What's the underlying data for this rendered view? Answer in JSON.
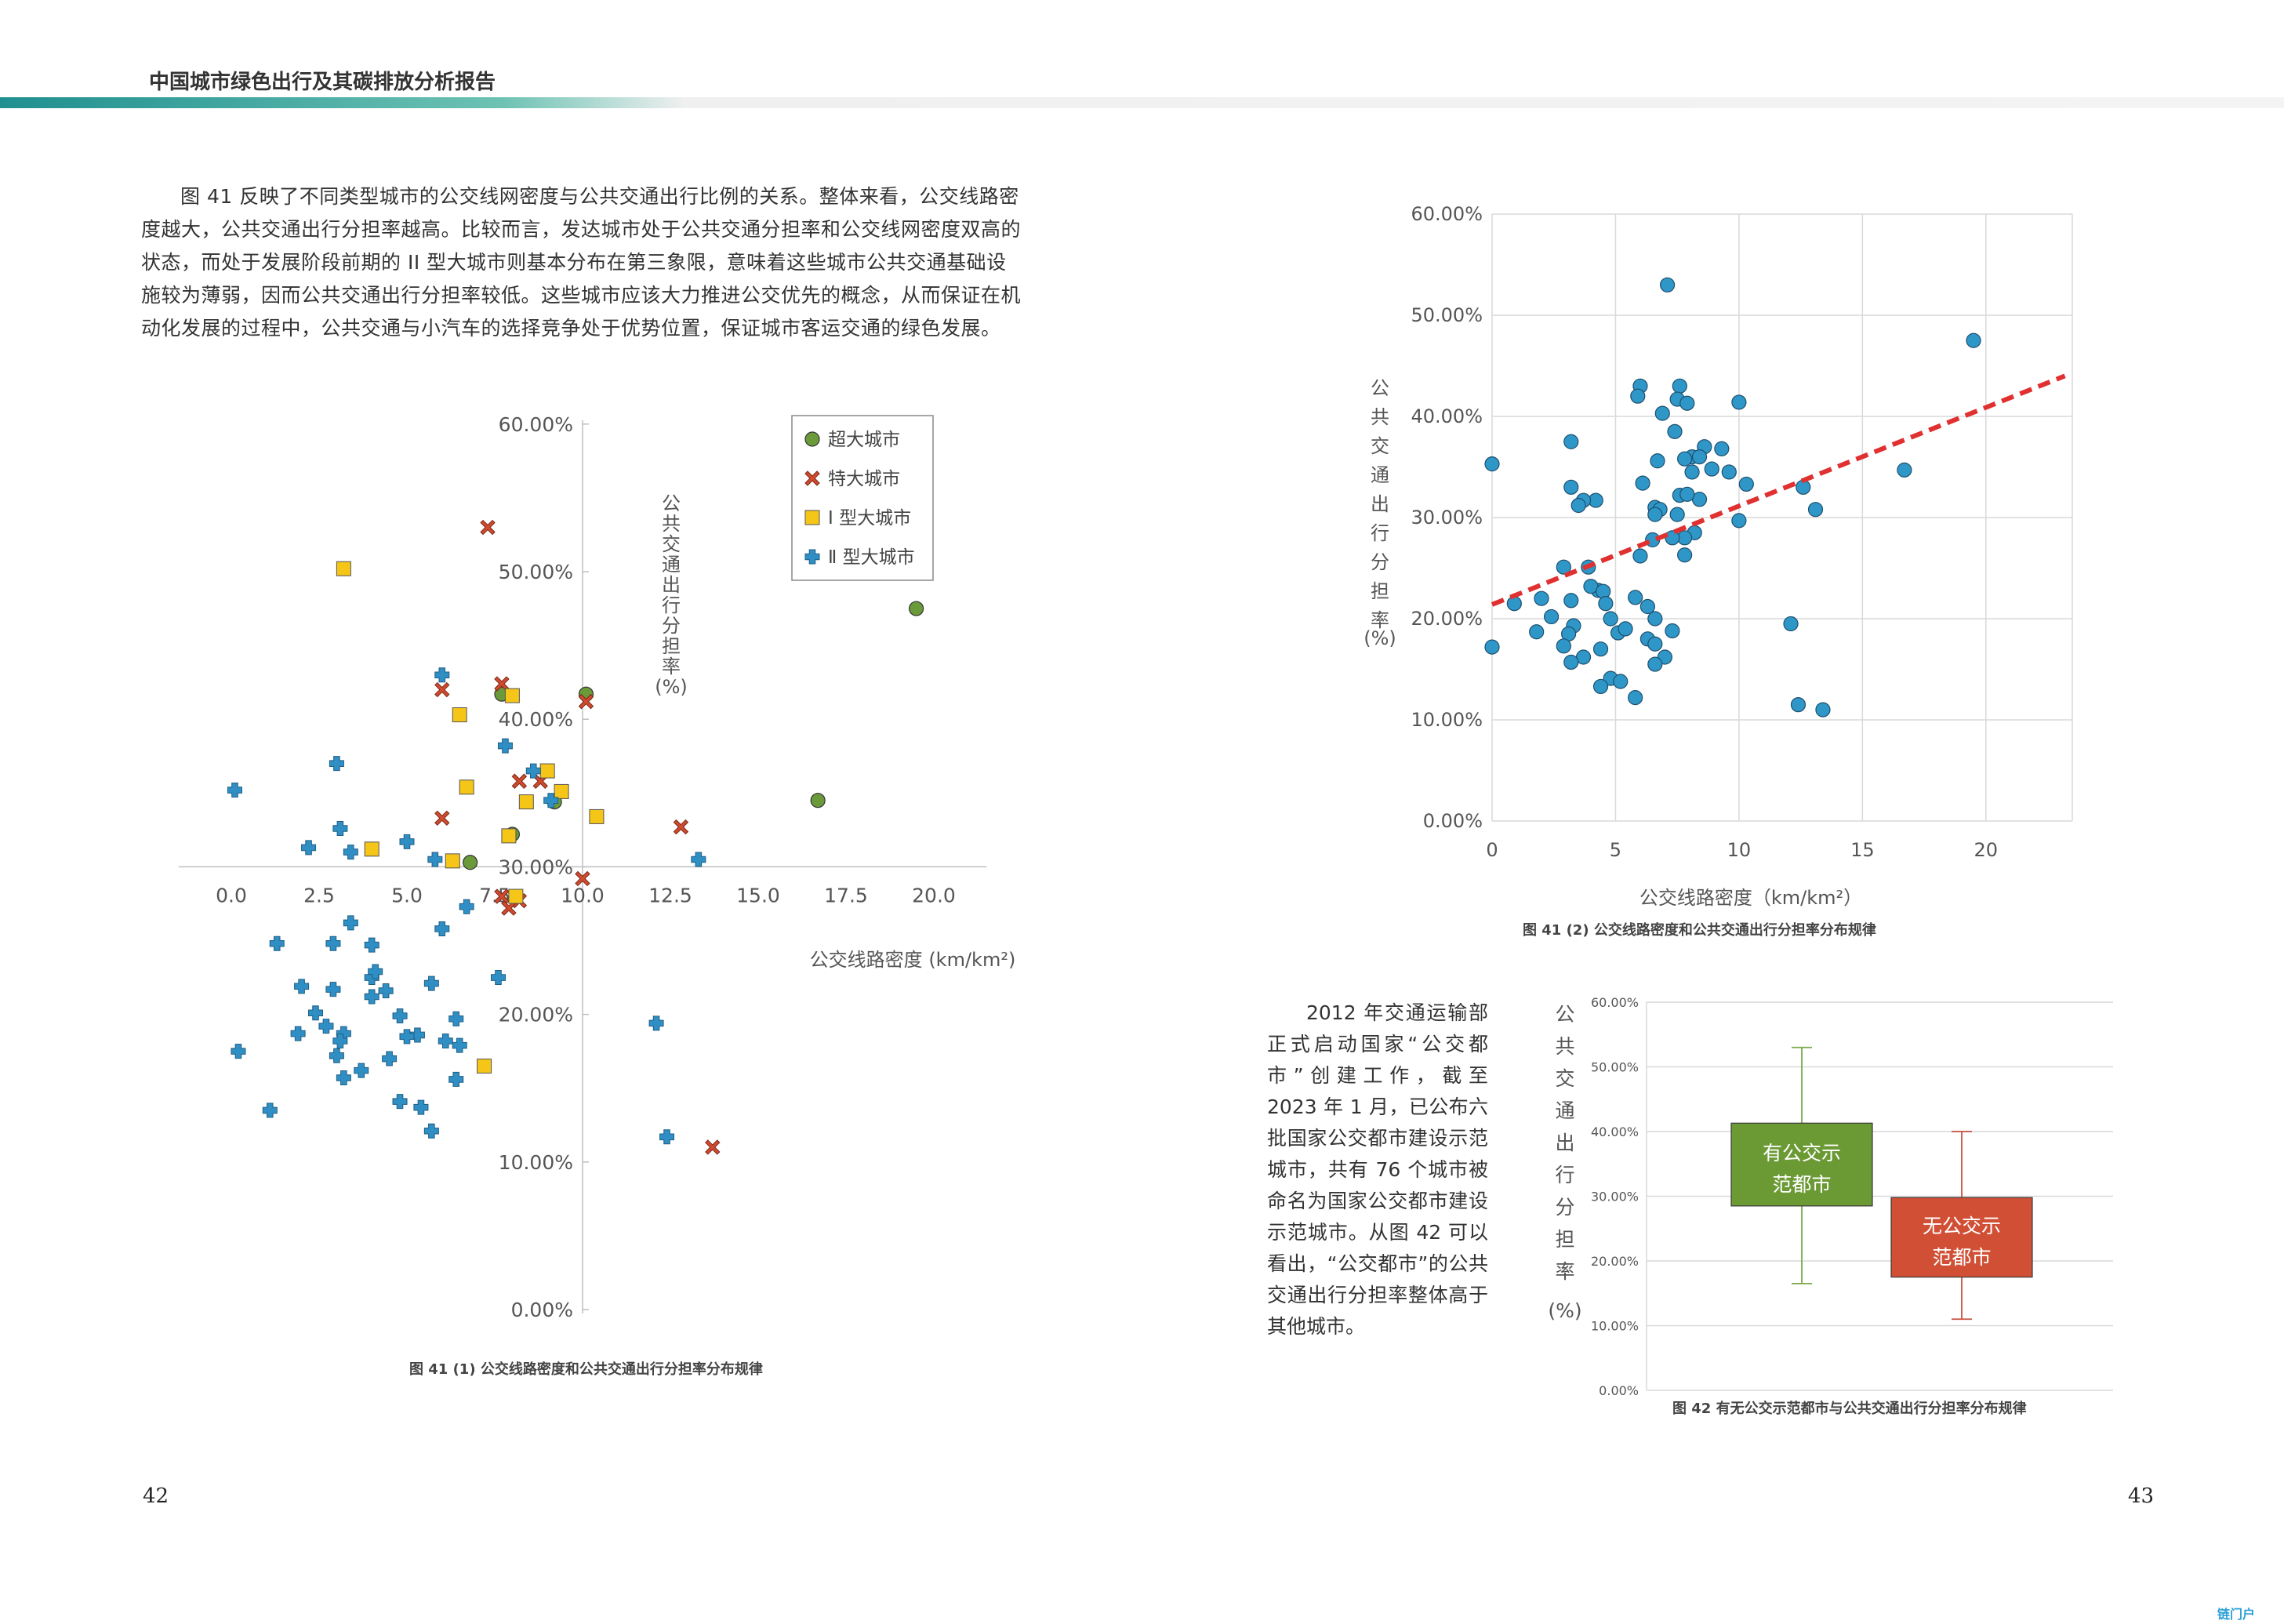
{
  "header": {
    "title": "中国城市绿色出行及其碳排放分析报告"
  },
  "body_text": "图 41 反映了不同类型城市的公交线网密度与公共交通出行比例的关系。整体来看，公交线路密度越大，公共交通出行分担率越高。比较而言，发达城市处于公共交通分担率和公交线网密度双高的状态，而处于发展阶段前期的 II 型大城市则基本分布在第三象限，意味着这些城市公共交通基础设施较为薄弱，因而公共交通出行分担率较低。这些城市应该大力推进公交优先的概念，从而保证在机动化发展的过程中，公共交通与小汽车的选择竞争处于优势位置，保证城市客运交通的绿色发展。",
  "side_text": "2012 年交通运输部正式启动国家“公交都市”创建工作，截至 2023 年 1 月，已公布六批国家公交都市建设示范城市，共有 76 个城市被命名为国家公交都市建设示范城市。从图 42 可以看出，“公交都市”的公共交通出行分担率整体高于其他城市。",
  "captions": {
    "fig41_1": "图 41 (1) 公交线路密度和公共交通出行分担率分布规律",
    "fig41_2": "图 41 (2) 公交线路密度和公共交通出行分担率分布规律",
    "fig42": "图 42 有无公交示范都市与公共交通出行分担率分布规律"
  },
  "page_numbers": {
    "left": "42",
    "right": "43"
  },
  "logo_text": "链门户",
  "chart_data": [
    {
      "id": "fig41_1",
      "type": "scatter",
      "xlabel": "公交线路密度 (km/km²)",
      "ylabel": "公共交通出行分担率 (%)",
      "x_ticks": [
        "0.0",
        "2.5",
        "5.0",
        "7.5",
        "10.0",
        "12.5",
        "15.0",
        "17.5",
        "20.0"
      ],
      "y_ticks": [
        "0.00%",
        "10.00%",
        "20.00%",
        "30.00%",
        "40.00%",
        "50.00%",
        "60.00%"
      ],
      "xlim": [
        -1.5,
        21.5
      ],
      "y_axis_crosses_x_at": 10,
      "x_axis_crosses_y_at": 0.3,
      "legend_position": "top-right",
      "series": [
        {
          "name": "超大城市",
          "marker": "circle",
          "color": "#6a9a3a",
          "points": [
            [
              19.5,
              0.475
            ],
            [
              16.7,
              0.345
            ],
            [
              10.1,
              0.417
            ],
            [
              9.2,
              0.344
            ],
            [
              7.7,
              0.417
            ],
            [
              8.0,
              0.322
            ],
            [
              6.8,
              0.303
            ]
          ]
        },
        {
          "name": "特大城市",
          "marker": "x",
          "color": "#d04a2e",
          "points": [
            [
              7.3,
              0.53
            ],
            [
              6.0,
              0.42
            ],
            [
              7.7,
              0.424
            ],
            [
              10.1,
              0.412
            ],
            [
              8.2,
              0.358
            ],
            [
              8.8,
              0.358
            ],
            [
              6.0,
              0.333
            ],
            [
              12.8,
              0.327
            ],
            [
              10.0,
              0.292
            ],
            [
              7.7,
              0.28
            ],
            [
              8.2,
              0.277
            ],
            [
              7.9,
              0.272
            ],
            [
              13.7,
              0.11
            ]
          ]
        },
        {
          "name": "Ⅰ 型大城市",
          "marker": "square",
          "color": "#f5c518",
          "points": [
            [
              3.2,
              0.502
            ],
            [
              8.0,
              0.416
            ],
            [
              6.5,
              0.403
            ],
            [
              9.0,
              0.365
            ],
            [
              6.7,
              0.354
            ],
            [
              9.4,
              0.351
            ],
            [
              8.4,
              0.344
            ],
            [
              10.4,
              0.334
            ],
            [
              7.9,
              0.321
            ],
            [
              4.0,
              0.312
            ],
            [
              6.3,
              0.304
            ],
            [
              8.1,
              0.28
            ],
            [
              7.2,
              0.165
            ]
          ]
        },
        {
          "name": "Ⅱ 型大城市",
          "marker": "plus",
          "color": "#2f8fc4",
          "points": [
            [
              6.0,
              0.43
            ],
            [
              3.0,
              0.37
            ],
            [
              7.8,
              0.382
            ],
            [
              8.6,
              0.365
            ],
            [
              9.1,
              0.345
            ],
            [
              0.1,
              0.352
            ],
            [
              3.1,
              0.326
            ],
            [
              5.0,
              0.317
            ],
            [
              2.2,
              0.313
            ],
            [
              3.4,
              0.31
            ],
            [
              5.8,
              0.305
            ],
            [
              13.3,
              0.305
            ],
            [
              6.0,
              0.258
            ],
            [
              6.7,
              0.273
            ],
            [
              3.4,
              0.262
            ],
            [
              1.3,
              0.248
            ],
            [
              2.9,
              0.248
            ],
            [
              4.0,
              0.247
            ],
            [
              4.0,
              0.225
            ],
            [
              4.1,
              0.229
            ],
            [
              5.7,
              0.221
            ],
            [
              7.6,
              0.225
            ],
            [
              2.0,
              0.219
            ],
            [
              2.9,
              0.217
            ],
            [
              4.4,
              0.216
            ],
            [
              4.0,
              0.212
            ],
            [
              2.4,
              0.201
            ],
            [
              4.8,
              0.199
            ],
            [
              6.4,
              0.197
            ],
            [
              2.7,
              0.192
            ],
            [
              3.2,
              0.187
            ],
            [
              3.1,
              0.182
            ],
            [
              1.9,
              0.187
            ],
            [
              5.3,
              0.186
            ],
            [
              5.0,
              0.185
            ],
            [
              6.5,
              0.179
            ],
            [
              6.1,
              0.182
            ],
            [
              3.0,
              0.172
            ],
            [
              4.5,
              0.17
            ],
            [
              0.2,
              0.175
            ],
            [
              3.7,
              0.162
            ],
            [
              6.4,
              0.156
            ],
            [
              3.2,
              0.157
            ],
            [
              4.8,
              0.141
            ],
            [
              5.4,
              0.137
            ],
            [
              1.1,
              0.135
            ],
            [
              5.7,
              0.121
            ],
            [
              12.1,
              0.194
            ],
            [
              12.4,
              0.117
            ]
          ]
        }
      ]
    },
    {
      "id": "fig41_2",
      "type": "scatter",
      "xlabel": "公交线路密度（km/km²）",
      "ylabel": "公共交通出行分担率 (%)",
      "x_ticks": [
        "0",
        "5",
        "10",
        "15",
        "20"
      ],
      "y_ticks": [
        "0.00%",
        "10.00%",
        "20.00%",
        "30.00%",
        "40.00%",
        "50.00%",
        "60.00%"
      ],
      "xlim": [
        0,
        23.5
      ],
      "ylim": [
        0,
        0.6
      ],
      "grid": true,
      "trendline": {
        "style": "dashed",
        "color": "#e03030",
        "from": [
          0,
          0.214
        ],
        "to": [
          23.2,
          0.44
        ]
      },
      "points": [
        [
          7.1,
          0.53
        ],
        [
          19.5,
          0.475
        ],
        [
          6.0,
          0.43
        ],
        [
          7.6,
          0.43
        ],
        [
          5.9,
          0.42
        ],
        [
          7.5,
          0.417
        ],
        [
          7.9,
          0.413
        ],
        [
          10.0,
          0.414
        ],
        [
          6.9,
          0.403
        ],
        [
          7.4,
          0.385
        ],
        [
          3.2,
          0.375
        ],
        [
          8.6,
          0.37
        ],
        [
          9.3,
          0.368
        ],
        [
          8.1,
          0.36
        ],
        [
          8.4,
          0.36
        ],
        [
          7.8,
          0.358
        ],
        [
          6.7,
          0.356
        ],
        [
          8.9,
          0.348
        ],
        [
          9.6,
          0.345
        ],
        [
          16.7,
          0.347
        ],
        [
          8.1,
          0.345
        ],
        [
          0.0,
          0.353
        ],
        [
          6.1,
          0.334
        ],
        [
          3.2,
          0.33
        ],
        [
          10.3,
          0.333
        ],
        [
          12.6,
          0.33
        ],
        [
          4.2,
          0.317
        ],
        [
          7.6,
          0.322
        ],
        [
          3.7,
          0.317
        ],
        [
          8.4,
          0.318
        ],
        [
          3.5,
          0.312
        ],
        [
          7.9,
          0.323
        ],
        [
          6.6,
          0.31
        ],
        [
          6.8,
          0.308
        ],
        [
          6.6,
          0.303
        ],
        [
          7.5,
          0.303
        ],
        [
          13.1,
          0.308
        ],
        [
          10.0,
          0.297
        ],
        [
          8.2,
          0.285
        ],
        [
          7.8,
          0.28
        ],
        [
          6.5,
          0.278
        ],
        [
          7.3,
          0.28
        ],
        [
          6.0,
          0.262
        ],
        [
          7.8,
          0.263
        ],
        [
          2.9,
          0.251
        ],
        [
          3.9,
          0.251
        ],
        [
          4.3,
          0.228
        ],
        [
          4.0,
          0.232
        ],
        [
          4.5,
          0.227
        ],
        [
          2.0,
          0.22
        ],
        [
          3.2,
          0.218
        ],
        [
          5.8,
          0.221
        ],
        [
          4.6,
          0.215
        ],
        [
          6.3,
          0.212
        ],
        [
          0.9,
          0.215
        ],
        [
          2.4,
          0.202
        ],
        [
          4.8,
          0.2
        ],
        [
          6.6,
          0.2
        ],
        [
          3.3,
          0.193
        ],
        [
          5.1,
          0.186
        ],
        [
          5.4,
          0.19
        ],
        [
          7.3,
          0.188
        ],
        [
          1.8,
          0.187
        ],
        [
          3.1,
          0.185
        ],
        [
          6.3,
          0.18
        ],
        [
          6.6,
          0.175
        ],
        [
          0.0,
          0.172
        ],
        [
          2.9,
          0.173
        ],
        [
          4.4,
          0.17
        ],
        [
          7.0,
          0.162
        ],
        [
          3.7,
          0.162
        ],
        [
          3.2,
          0.157
        ],
        [
          6.6,
          0.155
        ],
        [
          4.8,
          0.141
        ],
        [
          5.2,
          0.138
        ],
        [
          4.4,
          0.133
        ],
        [
          5.8,
          0.122
        ],
        [
          12.1,
          0.195
        ],
        [
          12.4,
          0.115
        ],
        [
          13.4,
          0.11
        ]
      ]
    },
    {
      "id": "fig42",
      "type": "box",
      "ylabel": "公共交通出行分担率 (%)",
      "y_ticks": [
        "0.00%",
        "10.00%",
        "20.00%",
        "30.00%",
        "40.00%",
        "50.00%",
        "60.00%"
      ],
      "ylim": [
        0,
        0.6
      ],
      "grid": true,
      "boxes": [
        {
          "label": "有公交示范都市",
          "label_lines": [
            "有公交示",
            "范都市"
          ],
          "color": "#6b9a35",
          "whisker_color": "#7aa84a",
          "min": 0.165,
          "q1": 0.285,
          "q3": 0.413,
          "max": 0.53
        },
        {
          "label": "无公交示范都市",
          "label_lines": [
            "无公交示",
            "范都市"
          ],
          "color": "#d14f35",
          "whisker_color": "#c85040",
          "min": 0.11,
          "q1": 0.175,
          "q3": 0.298,
          "max": 0.4
        }
      ]
    }
  ]
}
